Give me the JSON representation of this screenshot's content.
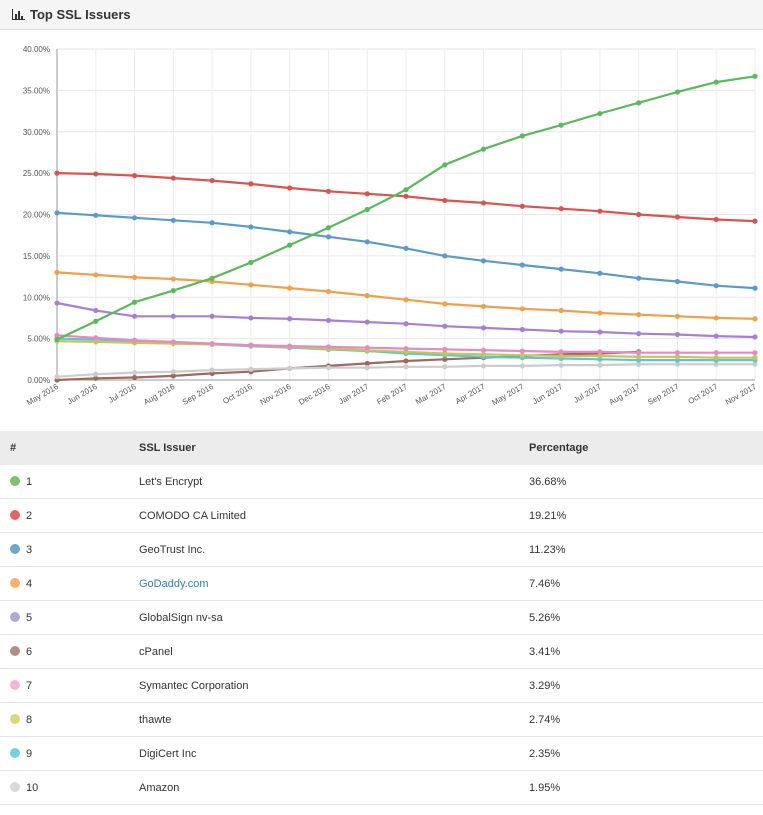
{
  "header": {
    "title": "Top SSL Issuers",
    "icon": "bar-chart-icon"
  },
  "table": {
    "headers": {
      "rank": "#",
      "issuer": "SSL Issuer",
      "percentage": "Percentage"
    },
    "rows": [
      {
        "rank": "1",
        "issuer": "Let's Encrypt",
        "percentage": "36.68%",
        "color": "#7cc16e",
        "link": false
      },
      {
        "rank": "2",
        "issuer": "COMODO CA Limited",
        "percentage": "19.21%",
        "color": "#e06666",
        "link": false
      },
      {
        "rank": "3",
        "issuer": "GeoTrust Inc.",
        "percentage": "11.23%",
        "color": "#6fa8c9",
        "link": false
      },
      {
        "rank": "4",
        "issuer": "GoDaddy.com",
        "percentage": "7.46%",
        "color": "#f6b26b",
        "link": true
      },
      {
        "rank": "5",
        "issuer": "GlobalSign nv-sa",
        "percentage": "5.26%",
        "color": "#b4a7d6",
        "link": false
      },
      {
        "rank": "6",
        "issuer": "cPanel",
        "percentage": "3.41%",
        "color": "#b09085",
        "link": false
      },
      {
        "rank": "7",
        "issuer": "Symantec Corporation",
        "percentage": "3.29%",
        "color": "#f4b6d8",
        "link": false
      },
      {
        "rank": "8",
        "issuer": "thawte",
        "percentage": "2.74%",
        "color": "#d9d77d",
        "link": false
      },
      {
        "rank": "9",
        "issuer": "DigiCert Inc",
        "percentage": "2.35%",
        "color": "#76d1e0",
        "link": false
      },
      {
        "rank": "10",
        "issuer": "Amazon",
        "percentage": "1.95%",
        "color": "#d9d9d9",
        "link": false
      }
    ]
  },
  "chart_data": {
    "type": "line",
    "x": [
      "May 2016",
      "Jun 2016",
      "Jul 2016",
      "Aug 2016",
      "Sep 2016",
      "Oct 2016",
      "Nov 2016",
      "Dec 2016",
      "Jan 2017",
      "Feb 2017",
      "Mar 2017",
      "Apr 2017",
      "May 2017",
      "Jun 2017",
      "Jul 2017",
      "Aug 2017",
      "Sep 2017",
      "Oct 2017",
      "Nov 2017"
    ],
    "y_ticks": [
      "0.00%",
      "5.00%",
      "10.00%",
      "15.00%",
      "20.00%",
      "25.00%",
      "30.00%",
      "35.00%",
      "40.00%"
    ],
    "ylim": [
      0,
      40
    ],
    "grid": true,
    "series": [
      {
        "name": "Let's Encrypt",
        "color": "#5cb85c",
        "values": [
          4.9,
          7.1,
          9.4,
          10.8,
          12.3,
          14.2,
          16.3,
          18.4,
          20.6,
          23.0,
          26.0,
          27.9,
          29.5,
          30.8,
          32.2,
          33.5,
          34.8,
          36.0,
          36.7
        ]
      },
      {
        "name": "COMODO CA Limited",
        "color": "#d9534f",
        "values": [
          25.0,
          24.9,
          24.7,
          24.4,
          24.1,
          23.7,
          23.2,
          22.8,
          22.5,
          22.2,
          21.7,
          21.4,
          21.0,
          20.7,
          20.4,
          20.0,
          19.7,
          19.4,
          19.2
        ]
      },
      {
        "name": "GeoTrust Inc.",
        "color": "#5a9bc8",
        "values": [
          20.2,
          19.9,
          19.6,
          19.3,
          19.0,
          18.5,
          17.9,
          17.3,
          16.7,
          15.9,
          15.0,
          14.4,
          13.9,
          13.4,
          12.9,
          12.3,
          11.9,
          11.4,
          11.1
        ]
      },
      {
        "name": "GoDaddy.com",
        "color": "#f0a04b",
        "values": [
          13.0,
          12.7,
          12.4,
          12.2,
          11.9,
          11.5,
          11.1,
          10.7,
          10.2,
          9.7,
          9.2,
          8.9,
          8.6,
          8.4,
          8.1,
          7.9,
          7.7,
          7.5,
          7.4
        ]
      },
      {
        "name": "GlobalSign nv-sa",
        "color": "#a97fd0",
        "values": [
          9.3,
          8.4,
          7.7,
          7.7,
          7.7,
          7.5,
          7.4,
          7.2,
          7.0,
          6.8,
          6.5,
          6.3,
          6.1,
          5.9,
          5.8,
          5.6,
          5.5,
          5.3,
          5.2
        ]
      },
      {
        "name": "Symantec Corporation",
        "color": "#e58ac4",
        "values": [
          5.4,
          5.1,
          4.8,
          4.6,
          4.4,
          4.2,
          4.1,
          4.0,
          3.9,
          3.8,
          3.7,
          3.6,
          3.5,
          3.4,
          3.4,
          3.3,
          3.3,
          3.3,
          3.3
        ]
      },
      {
        "name": "thawte",
        "color": "#c9c555",
        "values": [
          4.7,
          4.6,
          4.5,
          4.4,
          4.3,
          4.2,
          4.0,
          3.8,
          3.6,
          3.4,
          3.2,
          3.1,
          3.0,
          2.9,
          2.9,
          2.8,
          2.8,
          2.7,
          2.7
        ]
      },
      {
        "name": "DigiCert Inc",
        "color": "#5cc6d8",
        "values": [
          5.0,
          4.9,
          4.7,
          4.5,
          4.3,
          4.1,
          3.9,
          3.7,
          3.5,
          3.2,
          3.0,
          2.8,
          2.7,
          2.6,
          2.5,
          2.4,
          2.4,
          2.4,
          2.4
        ]
      },
      {
        "name": "Amazon",
        "color": "#cccccc",
        "values": [
          0.4,
          0.7,
          0.9,
          1.0,
          1.2,
          1.3,
          1.4,
          1.5,
          1.5,
          1.6,
          1.6,
          1.7,
          1.7,
          1.8,
          1.8,
          1.9,
          1.9,
          1.9,
          1.9
        ]
      },
      {
        "name": "cPanel",
        "color": "#9b6b5e",
        "values": [
          0.0,
          0.2,
          0.3,
          0.5,
          0.8,
          1.0,
          1.4,
          1.7,
          2.0,
          2.3,
          2.5,
          2.7,
          2.9,
          3.1,
          3.2,
          3.4,
          null,
          null,
          null
        ]
      }
    ]
  }
}
